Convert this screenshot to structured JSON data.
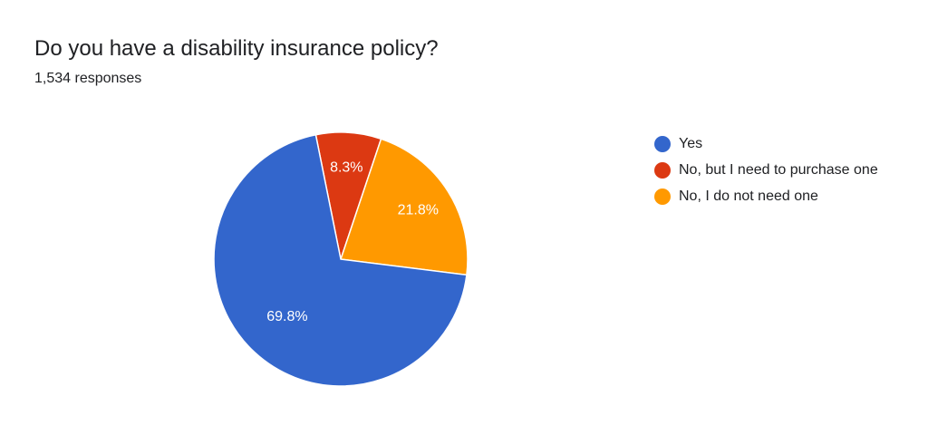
{
  "question": {
    "title": "Do you have a disability insurance policy?",
    "responses": "1,534 responses"
  },
  "chart_data": {
    "type": "pie",
    "title": "Do you have a disability insurance policy?",
    "subtitle": "1,534 responses",
    "categories": [
      "Yes",
      "No, but I need to purchase one",
      "No, I do not need one"
    ],
    "values": [
      69.8,
      8.3,
      21.8
    ],
    "labels": [
      "69.8%",
      "8.3%",
      "21.8%"
    ],
    "colors": [
      "#3366cc",
      "#dc3912",
      "#ff9900"
    ],
    "legend_position": "right"
  }
}
